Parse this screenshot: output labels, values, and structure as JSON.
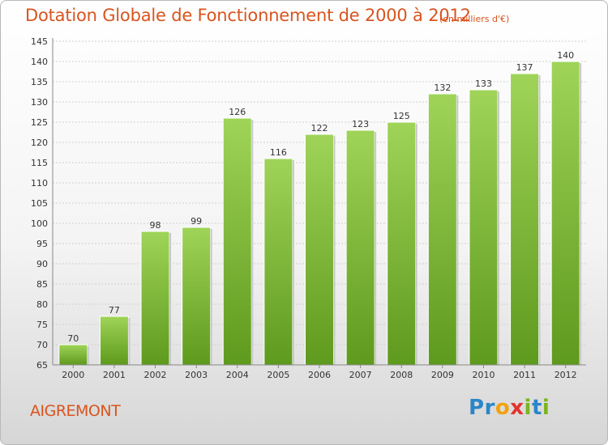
{
  "chart_data": {
    "type": "bar",
    "title": "Dotation Globale de Fonctionnement de 2000 à 2012",
    "subtitle": "(en milliers d'€)",
    "categories": [
      "2000",
      "2001",
      "2002",
      "2003",
      "2004",
      "2005",
      "2006",
      "2007",
      "2008",
      "2009",
      "2010",
      "2011",
      "2012"
    ],
    "values": [
      70,
      77,
      98,
      99,
      126,
      116,
      122,
      123,
      125,
      132,
      133,
      137,
      140
    ],
    "data_labels": [
      "70",
      "77",
      "98",
      "99",
      "126",
      "116",
      "122",
      "123",
      "125",
      "132",
      "133",
      "137",
      "140"
    ],
    "ylim": [
      65,
      145
    ],
    "yticks": [
      65,
      70,
      75,
      80,
      85,
      90,
      95,
      100,
      105,
      110,
      115,
      120,
      125,
      130,
      135,
      140,
      145
    ],
    "xlabel": "",
    "ylabel": "",
    "grid": true,
    "bar_color": "#7fbd35",
    "bar_color_light": "#9fd458",
    "bar_color_dark": "#5e9a1d"
  },
  "footer": {
    "commune": "AIGREMONT"
  },
  "logo": {
    "letters": [
      {
        "ch": "P",
        "color": "#2b86c8"
      },
      {
        "ch": "r",
        "color": "#2b86c8"
      },
      {
        "ch": "o",
        "color": "#f2a20c"
      },
      {
        "ch": "x",
        "color": "#e5322d"
      },
      {
        "ch": "i",
        "color": "#7ab51d"
      },
      {
        "ch": "t",
        "color": "#2b86c8"
      },
      {
        "ch": "i",
        "color": "#7ab51d"
      }
    ]
  }
}
